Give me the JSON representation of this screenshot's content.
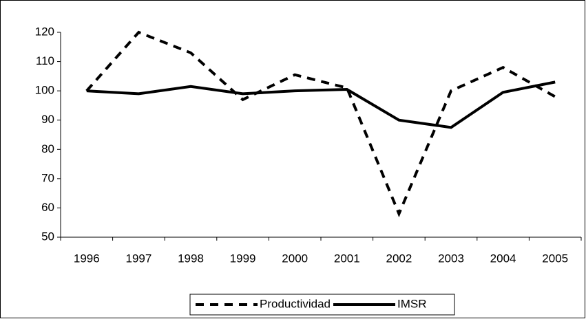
{
  "chart_data": {
    "type": "line",
    "categories": [
      "1996",
      "1997",
      "1998",
      "1999",
      "2000",
      "2001",
      "2002",
      "2003",
      "2004",
      "2005"
    ],
    "series": [
      {
        "name": "Productividad",
        "color": "#000000",
        "dash": true,
        "values": [
          100,
          120,
          113,
          97,
          105.5,
          101,
          58,
          100,
          108,
          98
        ]
      },
      {
        "name": "IMSR",
        "color": "#000000",
        "dash": false,
        "values": [
          100,
          99,
          101.5,
          99,
          100,
          100.5,
          90,
          87.5,
          99.5,
          103
        ]
      }
    ],
    "ylim": [
      50,
      120
    ],
    "yticks": [
      50,
      60,
      70,
      80,
      90,
      100,
      110,
      120
    ],
    "grid": false,
    "legend": "bottom"
  }
}
